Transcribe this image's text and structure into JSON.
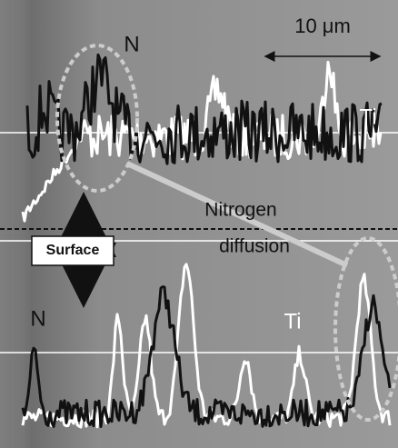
{
  "scale_bar": {
    "label": "10 μm"
  },
  "upper_profile": {
    "element_labels": [
      "N",
      "Ti"
    ]
  },
  "annotation": {
    "lines": [
      "Nitrogen",
      "diffusion"
    ]
  },
  "surface_label": "Surface",
  "lower_profile": {
    "element_labels": [
      "N",
      "Ti"
    ]
  }
}
